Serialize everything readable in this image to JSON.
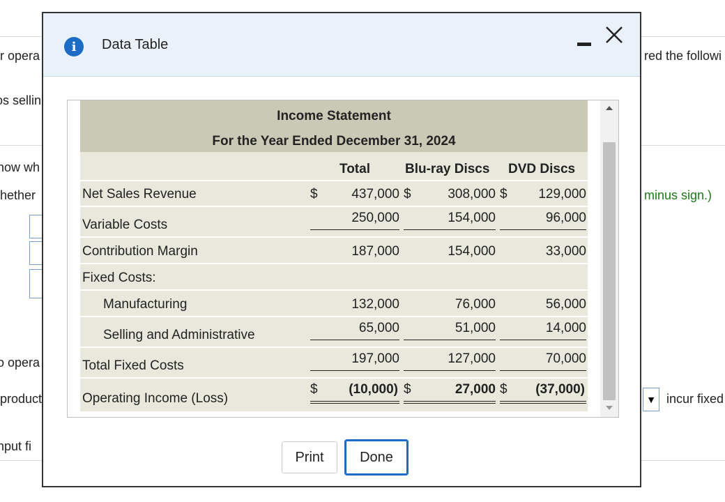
{
  "background": {
    "left_fragments": [
      "r opera",
      "os sellin",
      "how wh",
      "hether",
      "o opera",
      "product",
      "nput fi"
    ],
    "right_fragments": [
      "red the followi",
      "minus sign.)",
      "incur fixed"
    ],
    "select_arrow": "▼"
  },
  "dialog": {
    "title": "Data Table",
    "info_icon": "i",
    "minimize_icon": "minimize-icon",
    "close_icon": "close-icon"
  },
  "statement": {
    "title": "Income Statement",
    "subtitle": "For the Year Ended December 31, 2024",
    "columns": [
      "Total",
      "Blu-ray Discs",
      "DVD Discs"
    ],
    "currency": "$",
    "rows": [
      {
        "label": "Net Sales Revenue",
        "values": [
          "437,000",
          "308,000",
          "129,000"
        ]
      },
      {
        "label": "Variable Costs",
        "values": [
          "250,000",
          "154,000",
          "96,000"
        ]
      },
      {
        "label": "Contribution Margin",
        "values": [
          "187,000",
          "154,000",
          "33,000"
        ]
      },
      {
        "label": "Fixed Costs:",
        "values": [
          "",
          "",
          ""
        ]
      },
      {
        "label": "Manufacturing",
        "values": [
          "132,000",
          "76,000",
          "56,000"
        ]
      },
      {
        "label": "Selling and Administrative",
        "values": [
          "65,000",
          "51,000",
          "14,000"
        ]
      },
      {
        "label": "Total Fixed Costs",
        "values": [
          "197,000",
          "127,000",
          "70,000"
        ]
      },
      {
        "label": "Operating Income (Loss)",
        "values": [
          "(10,000)",
          "27,000",
          "(37,000)"
        ]
      }
    ]
  },
  "buttons": {
    "print": "Print",
    "done": "Done"
  }
}
